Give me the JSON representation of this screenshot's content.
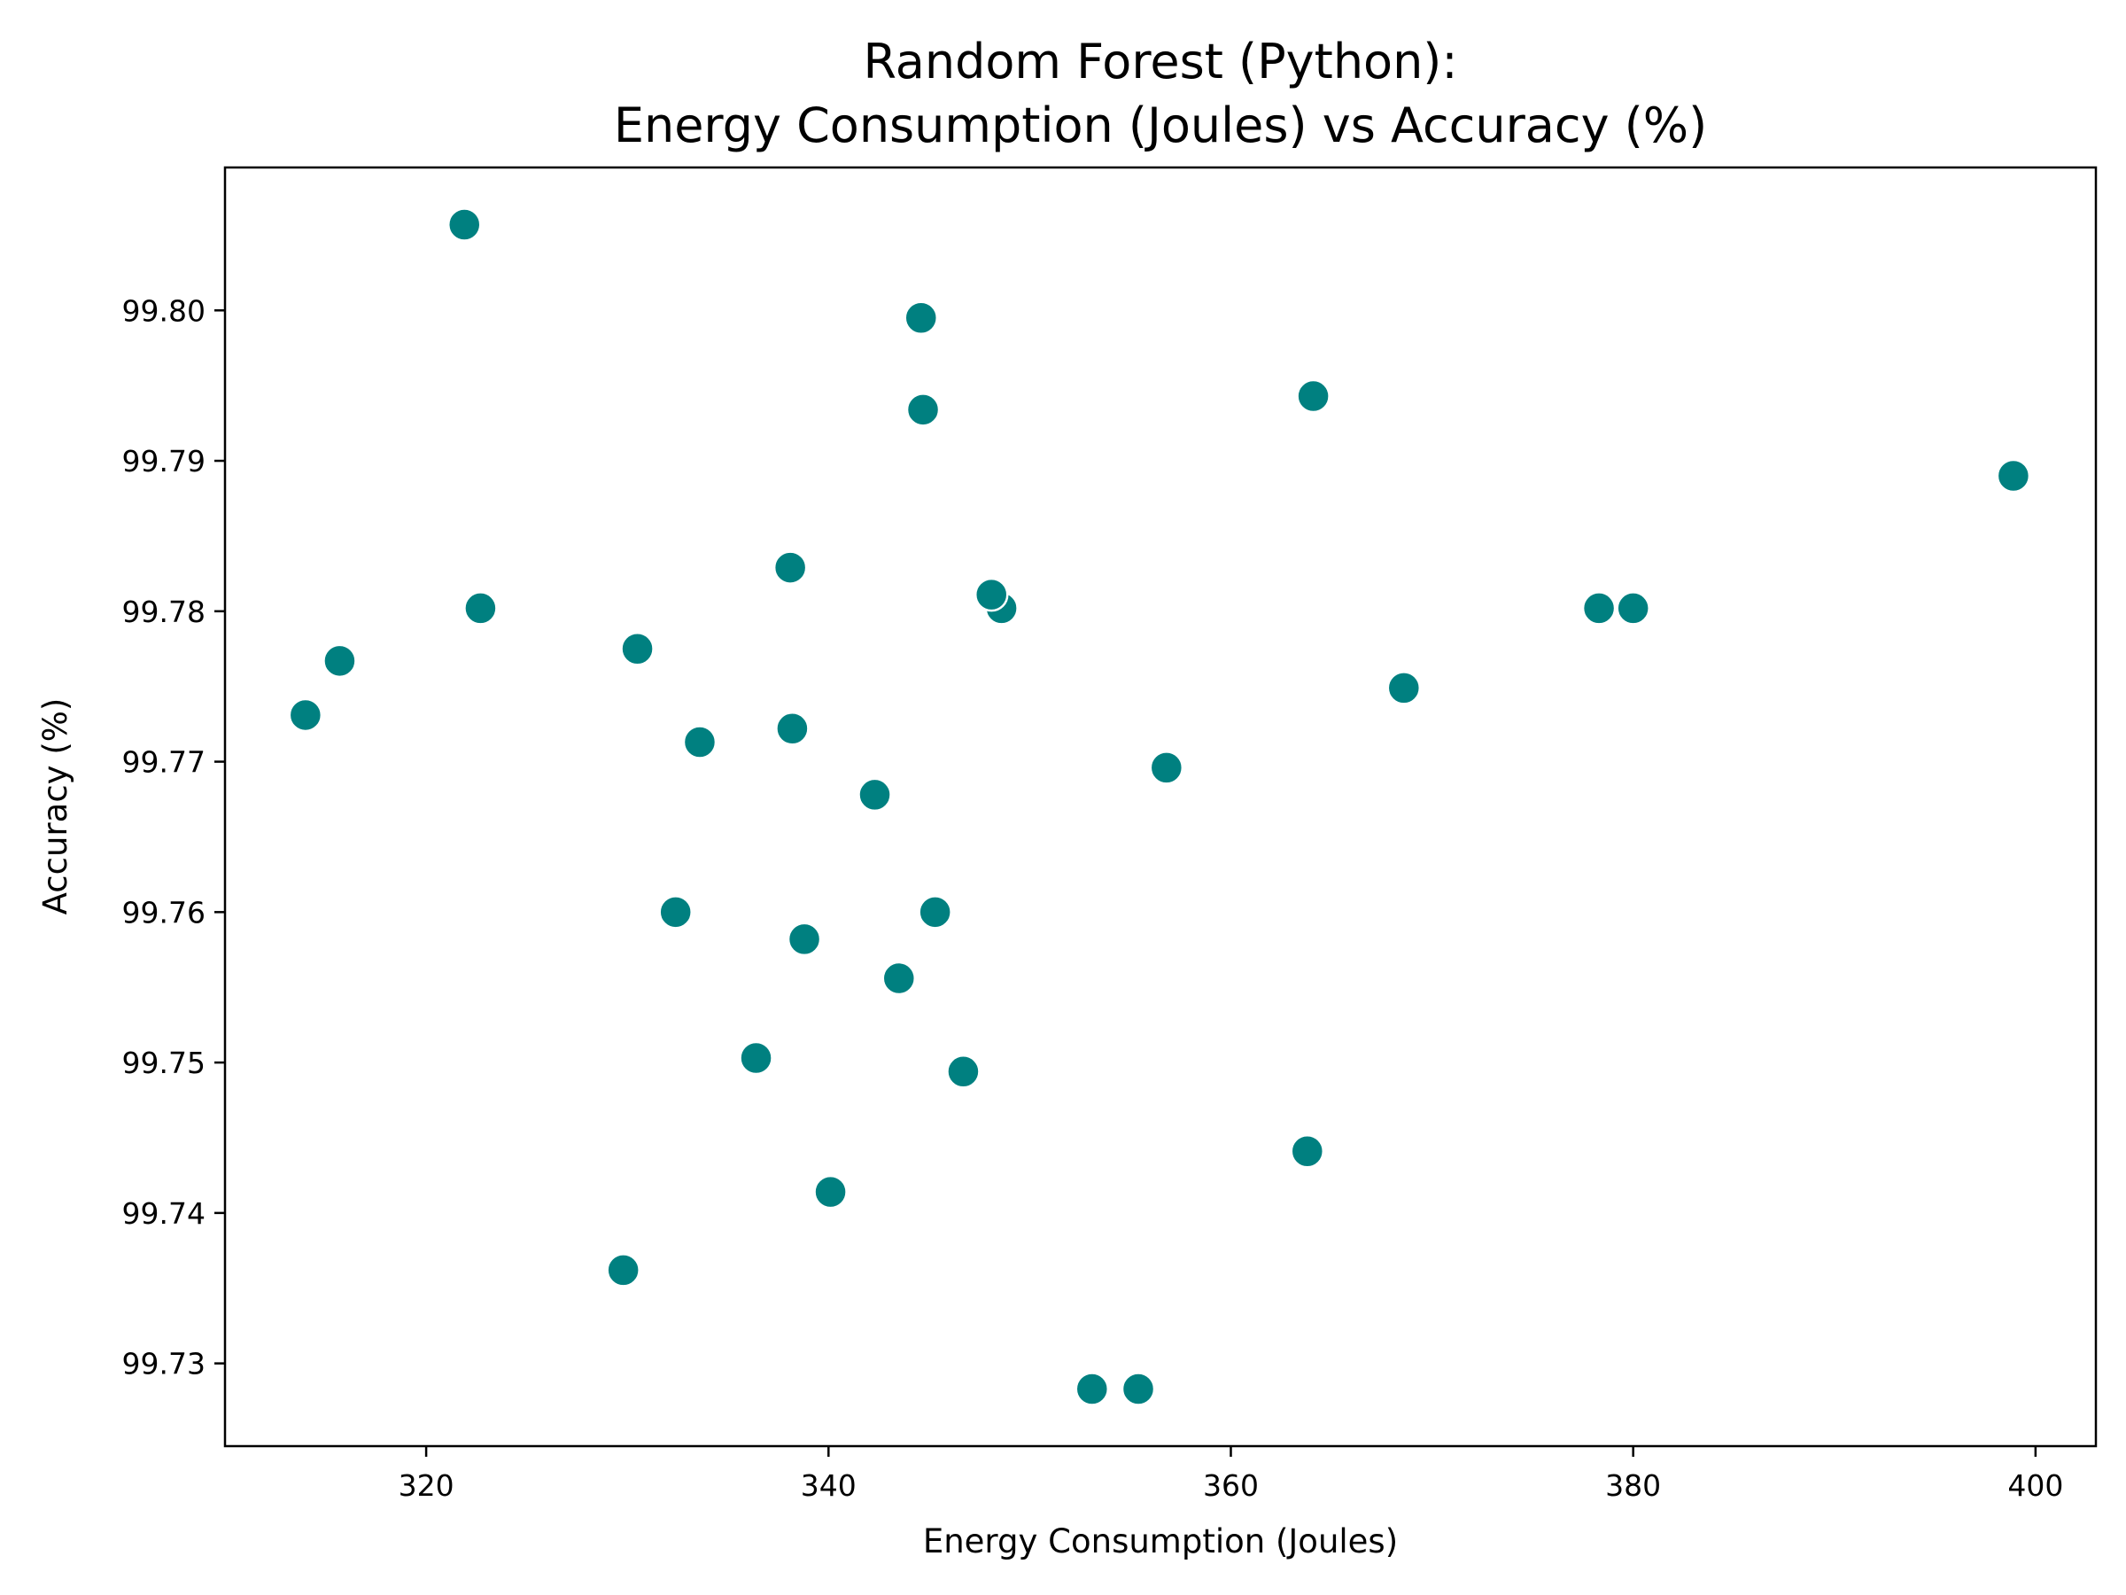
{
  "chart_data": {
    "type": "scatter",
    "title_lines": [
      "Random Forest (Python):",
      "Energy Consumption (Joules) vs Accuracy (%)"
    ],
    "xlabel": "Energy Consumption (Joules)",
    "ylabel": "Accuracy (%)",
    "xlim": [
      310,
      403
    ],
    "ylim": [
      99.7245,
      99.8095
    ],
    "xticks": [
      320,
      340,
      360,
      380,
      400
    ],
    "xtick_labels": [
      "320",
      "340",
      "360",
      "380",
      "400"
    ],
    "yticks": [
      99.73,
      99.74,
      99.75,
      99.76,
      99.77,
      99.78,
      99.79,
      99.8
    ],
    "ytick_labels": [
      "99.73",
      "99.74",
      "99.75",
      "99.76",
      "99.77",
      "99.78",
      "99.79",
      "99.80"
    ],
    "grid": false,
    "marker_color": "#008080",
    "points": [
      {
        "x": 321.9,
        "y": 99.8057
      },
      {
        "x": 344.6,
        "y": 99.7995
      },
      {
        "x": 344.7,
        "y": 99.7934
      },
      {
        "x": 364.1,
        "y": 99.7943
      },
      {
        "x": 398.9,
        "y": 99.789
      },
      {
        "x": 338.1,
        "y": 99.7829
      },
      {
        "x": 322.7,
        "y": 99.7802
      },
      {
        "x": 348.6,
        "y": 99.7802
      },
      {
        "x": 348.1,
        "y": 99.7811
      },
      {
        "x": 378.3,
        "y": 99.7802
      },
      {
        "x": 380.0,
        "y": 99.7802
      },
      {
        "x": 330.5,
        "y": 99.7775
      },
      {
        "x": 315.7,
        "y": 99.7767
      },
      {
        "x": 368.6,
        "y": 99.7749
      },
      {
        "x": 314.0,
        "y": 99.7731
      },
      {
        "x": 333.6,
        "y": 99.7713
      },
      {
        "x": 338.2,
        "y": 99.7722
      },
      {
        "x": 356.8,
        "y": 99.7696
      },
      {
        "x": 342.3,
        "y": 99.7678
      },
      {
        "x": 332.4,
        "y": 99.76
      },
      {
        "x": 345.3,
        "y": 99.76
      },
      {
        "x": 338.8,
        "y": 99.7582
      },
      {
        "x": 343.5,
        "y": 99.7556
      },
      {
        "x": 336.4,
        "y": 99.7503
      },
      {
        "x": 346.7,
        "y": 99.7494
      },
      {
        "x": 363.8,
        "y": 99.7441
      },
      {
        "x": 340.1,
        "y": 99.7414
      },
      {
        "x": 329.8,
        "y": 99.7362
      },
      {
        "x": 353.1,
        "y": 99.7283
      },
      {
        "x": 355.4,
        "y": 99.7283
      }
    ]
  }
}
